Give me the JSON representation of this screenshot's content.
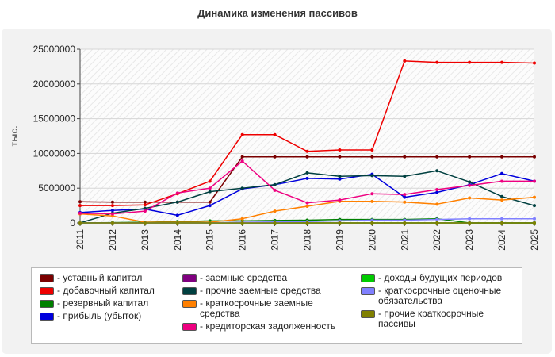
{
  "chart_data": {
    "type": "line",
    "title": "Динамика изменения пассивов",
    "ylabel": "тыс.",
    "xlabel": "",
    "ylim": [
      0,
      25000000
    ],
    "yticks": [
      "0",
      "5000000",
      "10000000",
      "15000000",
      "20000000",
      "25000000"
    ],
    "categories": [
      "2011",
      "2012",
      "2013",
      "2014",
      "2015",
      "2016",
      "2017",
      "2018",
      "2019",
      "2020",
      "2021",
      "2022",
      "2023",
      "2024",
      "2025"
    ],
    "grid": "horizontal",
    "legend_position": "bottom",
    "series": [
      {
        "name": "- уставный капитал",
        "color": "#7a0000",
        "values": [
          3050000,
          3000000,
          3000000,
          3000000,
          3000000,
          9500000,
          9500000,
          9500000,
          9500000,
          9500000,
          9500000,
          9500000,
          9500000,
          9500000,
          9500000
        ]
      },
      {
        "name": "- добавочный капитал",
        "color": "#ee0000",
        "values": [
          2500000,
          2500000,
          2600000,
          4200000,
          6000000,
          12700000,
          12700000,
          10300000,
          10500000,
          10500000,
          23300000,
          23100000,
          23100000,
          23100000,
          23000000
        ]
      },
      {
        "name": "- резервный капитал",
        "color": "#008000",
        "values": [
          0,
          50000,
          100000,
          200000,
          300000,
          300000,
          350000,
          400000,
          500000,
          500000,
          500000,
          600000,
          0,
          0,
          0
        ]
      },
      {
        "name": "- прибыль (убыток)",
        "color": "#0000dd",
        "values": [
          1500000,
          1800000,
          2000000,
          1100000,
          2500000,
          4900000,
          5500000,
          6400000,
          6300000,
          7000000,
          3700000,
          4400000,
          5500000,
          7100000,
          6000000
        ]
      },
      {
        "name": "- заемные средства",
        "color": "#800080",
        "values": [
          0,
          0,
          0,
          0,
          0,
          0,
          0,
          0,
          0,
          0,
          0,
          0,
          0,
          0,
          0
        ]
      },
      {
        "name": "- прочие заемные средства",
        "color": "#004040",
        "values": [
          0,
          1400000,
          2100000,
          3000000,
          4500000,
          5000000,
          5500000,
          7200000,
          6700000,
          6800000,
          6700000,
          7500000,
          5900000,
          3800000,
          2500000
        ]
      },
      {
        "name": "- краткосрочные заемные средства",
        "color": "#ff8000",
        "values": [
          1300000,
          1000000,
          100000,
          100000,
          100000,
          600000,
          1700000,
          2400000,
          3100000,
          3100000,
          3000000,
          2700000,
          3600000,
          3300000,
          3700000
        ]
      },
      {
        "name": "- кредиторская задолженность",
        "color": "#ee0080",
        "values": [
          1400000,
          1300000,
          1700000,
          4300000,
          5000000,
          8900000,
          4700000,
          2900000,
          3300000,
          4200000,
          4100000,
          4800000,
          5400000,
          6000000,
          6000000
        ]
      },
      {
        "name": "- доходы будущих периодов",
        "color": "#00cc00",
        "values": [
          0,
          0,
          0,
          0,
          0,
          0,
          0,
          0,
          0,
          0,
          0,
          0,
          0,
          0,
          0
        ]
      },
      {
        "name": "- краткосрочные оценочные обязательства",
        "color": "#8080ff",
        "values": [
          0,
          0,
          0,
          0,
          0,
          100000,
          150000,
          200000,
          300000,
          400000,
          400000,
          500000,
          600000,
          600000,
          600000
        ]
      },
      {
        "name": "- прочие краткосрочные пассивы",
        "color": "#808000",
        "values": [
          0,
          0,
          0,
          0,
          0,
          0,
          0,
          0,
          0,
          0,
          0,
          0,
          0,
          0,
          0
        ]
      }
    ]
  }
}
